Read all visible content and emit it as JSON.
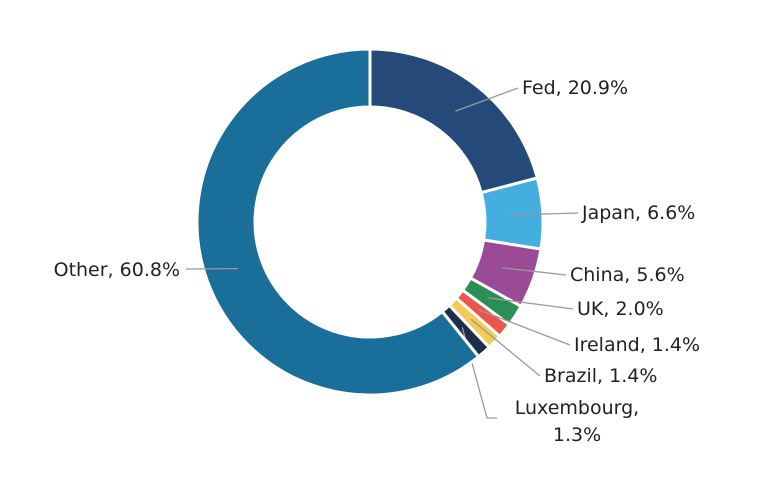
{
  "chart_data": {
    "type": "donut",
    "labels": [
      "Fed, 20.9%",
      "Japan, 6.6%",
      "China, 5.6%",
      "UK, 2.0%",
      "Ireland, 1.4%",
      "Brazil, 1.4%",
      "Luxembourg, 1.3%",
      "Other, 60.8%"
    ],
    "values": [
      20.9,
      6.6,
      5.6,
      2.0,
      1.4,
      1.4,
      1.3,
      60.8
    ],
    "colors": [
      "#254a7a",
      "#44aee0",
      "#9b4a96",
      "#2a8f55",
      "#e8574a",
      "#f4cc55",
      "#1c2e4a",
      "#1a6e9a"
    ]
  }
}
